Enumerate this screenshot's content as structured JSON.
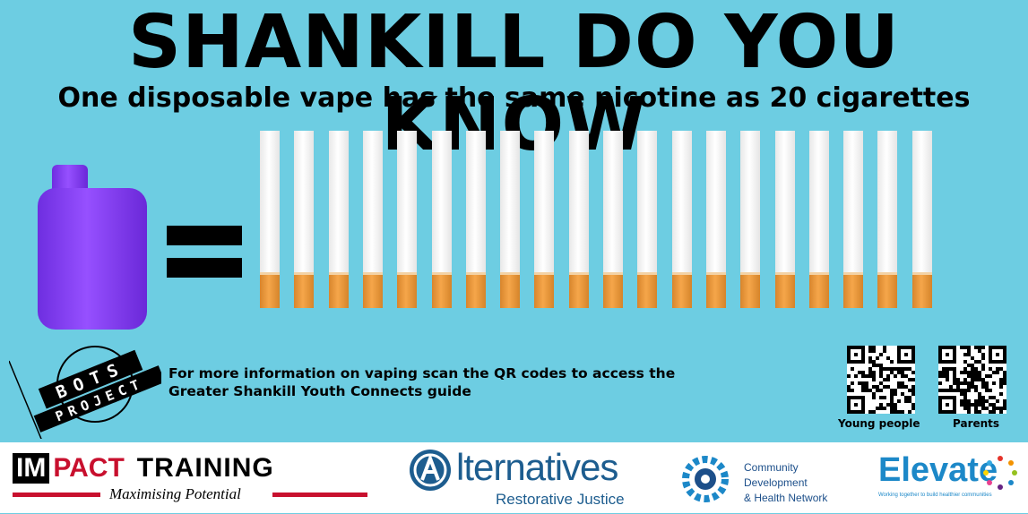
{
  "header": {
    "title": "SHANKILL DO YOU KNOW",
    "subtitle": "One disposable vape has the same nicotine as 20 cigarettes"
  },
  "illustration": {
    "vape_icon": "disposable-vape-icon",
    "equals_icon": "equals-sign",
    "cigarette_count": 20,
    "vape_color": "#8a3ff0",
    "filter_color": "#f0a040"
  },
  "bots_logo": {
    "lines": [
      "BOTS",
      "PROJECT"
    ]
  },
  "info": {
    "line1": "For more information on vaping scan the QR codes to access the",
    "line2": "Greater Shankill Youth Connects guide"
  },
  "qr_codes": [
    {
      "label": "Young people",
      "icon": "qr-code-icon"
    },
    {
      "label": "Parents",
      "icon": "qr-code-icon"
    }
  ],
  "sponsors": {
    "impact": {
      "part1": "IM",
      "part2": "PACT",
      "part3": "TRAINING",
      "tagline": "Maximising Potential"
    },
    "alternatives": {
      "word": "lternatives",
      "tagline": "Restorative Justice"
    },
    "cdhn": {
      "line1": "Community",
      "line2": "Development",
      "line3": "& Health Network"
    },
    "elevate": {
      "word": "Elevate",
      "tagline": "Working together to build healthier communities"
    }
  },
  "colors": {
    "background": "#6dcde2",
    "brand_red": "#c8102e",
    "brand_blue": "#1d5d8f"
  }
}
